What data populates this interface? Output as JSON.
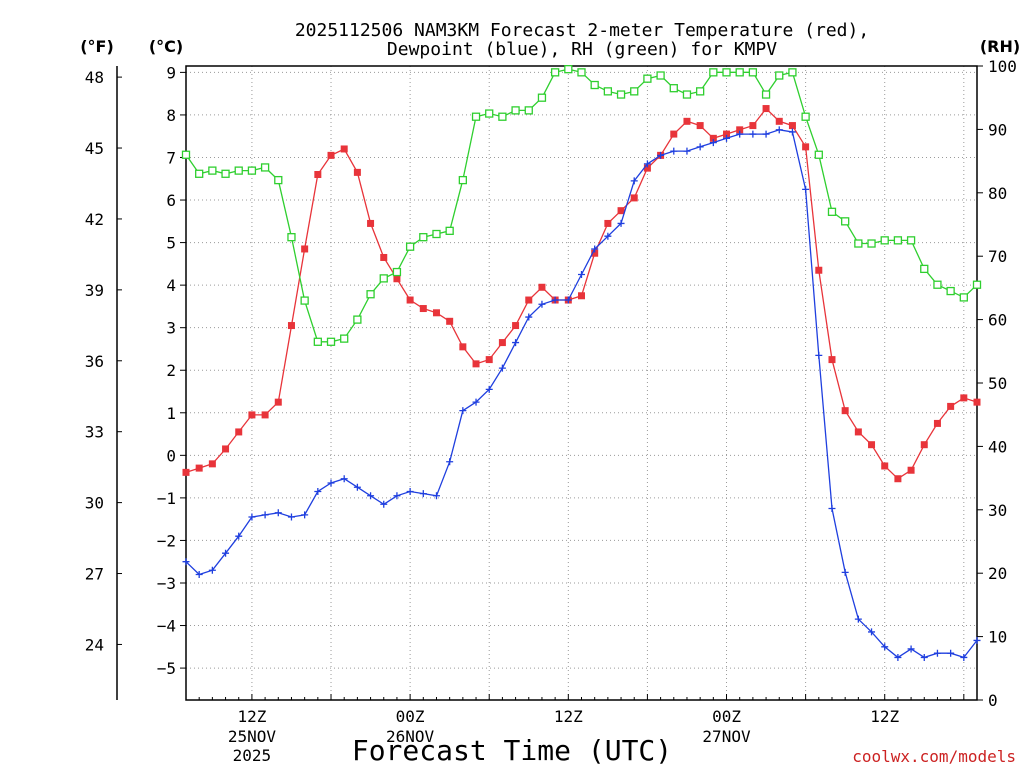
{
  "chart_data": {
    "type": "line",
    "title_line1": "2025112506 NAM3KM Forecast 2-meter Temperature (red),",
    "title_line2": "Dewpoint (blue), RH (green) for KMPV",
    "xlabel": "Forecast Time (UTC)",
    "credit": "coolwx.com/models",
    "unit_f": "(°F)",
    "unit_c": "(°C)",
    "unit_rh": "(RH)",
    "x_range_hours": [
      7,
      67
    ],
    "y_left_c": {
      "range": [
        -5.75,
        9.15
      ],
      "ticks": [
        9,
        8,
        7,
        6,
        5,
        4,
        3,
        2,
        1,
        0,
        -1,
        -2,
        -3,
        -4,
        -5
      ]
    },
    "y_far_left_f": {
      "ticks": [
        48,
        45,
        42,
        39,
        36,
        33,
        30,
        27,
        24
      ]
    },
    "y_right_rh": {
      "range": [
        0,
        100
      ],
      "ticks": [
        100,
        90,
        80,
        70,
        60,
        50,
        40,
        30,
        20,
        10,
        0
      ]
    },
    "x_ticks": [
      {
        "hour": 12,
        "label": "12Z",
        "date": "25NOV",
        "year": "2025"
      },
      {
        "hour": 24,
        "label": "00Z",
        "date": "26NOV",
        "year": ""
      },
      {
        "hour": 36,
        "label": "12Z",
        "date": "",
        "year": ""
      },
      {
        "hour": 48,
        "label": "00Z",
        "date": "27NOV",
        "year": ""
      },
      {
        "hour": 60,
        "label": "12Z",
        "date": "",
        "year": ""
      }
    ],
    "series": [
      {
        "name": "Temperature",
        "units": "°C",
        "axis": "celsius",
        "color": "#e8343a",
        "marker": "filled-square",
        "x": [
          7,
          8,
          9,
          10,
          11,
          12,
          13,
          14,
          15,
          16,
          17,
          18,
          19,
          20,
          21,
          22,
          23,
          24,
          25,
          26,
          27,
          28,
          29,
          30,
          31,
          32,
          33,
          34,
          35,
          36,
          37,
          38,
          39,
          40,
          41,
          42,
          43,
          44,
          45,
          46,
          47,
          48,
          49,
          50,
          51,
          52,
          53,
          54,
          55,
          56,
          57,
          58,
          59,
          60,
          61,
          62,
          63,
          64,
          65,
          66,
          67
        ],
        "values": [
          -0.4,
          -0.3,
          -0.2,
          0.15,
          0.55,
          0.95,
          0.95,
          1.25,
          3.05,
          4.85,
          6.6,
          7.05,
          7.2,
          6.65,
          5.45,
          4.65,
          4.15,
          3.65,
          3.45,
          3.35,
          3.15,
          2.55,
          2.15,
          2.25,
          2.65,
          3.05,
          3.65,
          3.95,
          3.65,
          3.65,
          3.75,
          4.75,
          5.45,
          5.75,
          6.05,
          6.75,
          7.05,
          7.55,
          7.85,
          7.75,
          7.45,
          7.55,
          7.65,
          7.75,
          8.15,
          7.85,
          7.75,
          7.25,
          4.35,
          2.25,
          1.05,
          0.55,
          0.25,
          -0.25,
          -0.55,
          -0.35,
          0.25,
          0.75,
          1.15,
          1.35,
          1.25
        ]
      },
      {
        "name": "Dewpoint",
        "units": "°C",
        "axis": "celsius",
        "color": "#1f3fdf",
        "marker": "plus",
        "x": [
          7,
          8,
          9,
          10,
          11,
          12,
          13,
          14,
          15,
          16,
          17,
          18,
          19,
          20,
          21,
          22,
          23,
          24,
          25,
          26,
          27,
          28,
          29,
          30,
          31,
          32,
          33,
          34,
          35,
          36,
          37,
          38,
          39,
          40,
          41,
          42,
          43,
          44,
          45,
          46,
          47,
          48,
          49,
          50,
          51,
          52,
          53,
          54,
          55,
          56,
          57,
          58,
          59,
          60,
          61,
          62,
          63,
          64,
          65,
          66,
          67
        ],
        "values": [
          -2.5,
          -2.8,
          -2.7,
          -2.3,
          -1.9,
          -1.45,
          -1.4,
          -1.35,
          -1.45,
          -1.4,
          -0.85,
          -0.65,
          -0.55,
          -0.75,
          -0.95,
          -1.15,
          -0.95,
          -0.85,
          -0.9,
          -0.95,
          -0.15,
          1.05,
          1.25,
          1.55,
          2.05,
          2.65,
          3.25,
          3.55,
          3.65,
          3.65,
          4.25,
          4.85,
          5.15,
          5.45,
          6.45,
          6.85,
          7.05,
          7.15,
          7.15,
          7.25,
          7.35,
          7.45,
          7.55,
          7.55,
          7.55,
          7.65,
          7.6,
          6.25,
          2.35,
          -1.25,
          -2.75,
          -3.85,
          -4.15,
          -4.5,
          -4.75,
          -4.55,
          -4.75,
          -4.65,
          -4.65,
          -4.75,
          -4.35
        ]
      },
      {
        "name": "Relative Humidity",
        "units": "%",
        "axis": "rh",
        "color": "#2fcf2f",
        "marker": "open-square",
        "x": [
          7,
          8,
          9,
          10,
          11,
          12,
          13,
          14,
          15,
          16,
          17,
          18,
          19,
          20,
          21,
          22,
          23,
          24,
          25,
          26,
          27,
          28,
          29,
          30,
          31,
          32,
          33,
          34,
          35,
          36,
          37,
          38,
          39,
          40,
          41,
          42,
          43,
          44,
          45,
          46,
          47,
          48,
          49,
          50,
          51,
          52,
          53,
          54,
          55,
          56,
          57,
          58,
          59,
          60,
          61,
          62,
          63,
          64,
          65,
          66,
          67
        ],
        "values": [
          86,
          83,
          83.5,
          83,
          83.5,
          83.5,
          84,
          82,
          73,
          63,
          56.5,
          56.5,
          57,
          60,
          64,
          66.5,
          67.5,
          71.5,
          73,
          73.5,
          74,
          82,
          92,
          92.5,
          92,
          93,
          93,
          95,
          99,
          99.5,
          99,
          97,
          96,
          95.5,
          96,
          98,
          98.5,
          96.5,
          95.5,
          96,
          99,
          99,
          99,
          99,
          95.5,
          98.5,
          99,
          92,
          86,
          77,
          75.5,
          72,
          72,
          72.5,
          72.5,
          72.5,
          68,
          65.5,
          64.5,
          63.5,
          65.5
        ]
      }
    ]
  }
}
